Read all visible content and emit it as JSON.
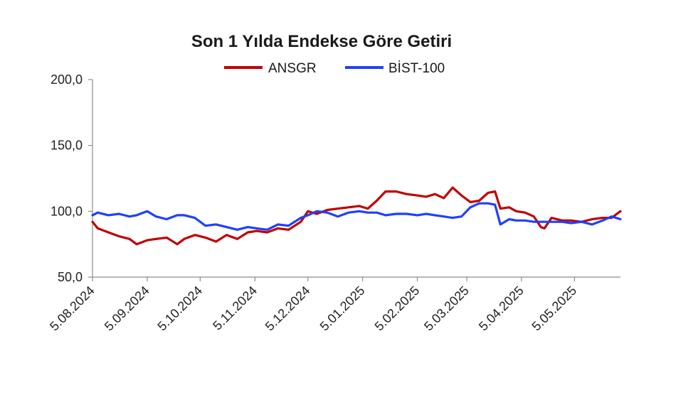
{
  "chart_data": {
    "type": "line",
    "title": "Son 1 Yılda Endekse Göre Getiri",
    "xlabel": "",
    "ylabel": "",
    "ylim": [
      50,
      200
    ],
    "yticks": [
      "50,0",
      "100,0",
      "150,0",
      "200,0"
    ],
    "yticks_values": [
      50,
      100,
      150,
      200
    ],
    "xticks": [
      "5.08.2024",
      "5.09.2024",
      "5.10.2024",
      "5.11.2024",
      "5.12.2024",
      "5.01.2025",
      "5.02.2025",
      "5.03.2025",
      "5.04.2025",
      "5.05.2025"
    ],
    "x_range": [
      "2024-08-05",
      "2025-05-31"
    ],
    "grid": false,
    "legend_position": "top",
    "series": [
      {
        "name": "ANSGR",
        "color": "#C00000",
        "points": [
          [
            "2024-08-05",
            92
          ],
          [
            "2024-08-08",
            87
          ],
          [
            "2024-08-14",
            84
          ],
          [
            "2024-08-20",
            81
          ],
          [
            "2024-08-26",
            79
          ],
          [
            "2024-08-30",
            75
          ],
          [
            "2024-09-05",
            78
          ],
          [
            "2024-09-10",
            79
          ],
          [
            "2024-09-16",
            80
          ],
          [
            "2024-09-22",
            75
          ],
          [
            "2024-09-26",
            79
          ],
          [
            "2024-10-02",
            82
          ],
          [
            "2024-10-08",
            80
          ],
          [
            "2024-10-14",
            77
          ],
          [
            "2024-10-20",
            82
          ],
          [
            "2024-10-26",
            79
          ],
          [
            "2024-11-01",
            84
          ],
          [
            "2024-11-06",
            85
          ],
          [
            "2024-11-12",
            84
          ],
          [
            "2024-11-18",
            87
          ],
          [
            "2024-11-24",
            86
          ],
          [
            "2024-12-01",
            92
          ],
          [
            "2024-12-05",
            100
          ],
          [
            "2024-12-10",
            98
          ],
          [
            "2024-12-16",
            101
          ],
          [
            "2024-12-22",
            102
          ],
          [
            "2024-12-28",
            103
          ],
          [
            "2025-01-03",
            104
          ],
          [
            "2025-01-08",
            102
          ],
          [
            "2025-01-13",
            108
          ],
          [
            "2025-01-18",
            115
          ],
          [
            "2025-01-24",
            115
          ],
          [
            "2025-01-30",
            113
          ],
          [
            "2025-02-05",
            112
          ],
          [
            "2025-02-10",
            111
          ],
          [
            "2025-02-15",
            113
          ],
          [
            "2025-02-20",
            110
          ],
          [
            "2025-02-25",
            118
          ],
          [
            "2025-03-02",
            112
          ],
          [
            "2025-03-07",
            107
          ],
          [
            "2025-03-12",
            108
          ],
          [
            "2025-03-17",
            114
          ],
          [
            "2025-03-21",
            115
          ],
          [
            "2025-03-24",
            102
          ],
          [
            "2025-03-29",
            103
          ],
          [
            "2025-04-02",
            100
          ],
          [
            "2025-04-07",
            99
          ],
          [
            "2025-04-12",
            96
          ],
          [
            "2025-04-16",
            88
          ],
          [
            "2025-04-18",
            87
          ],
          [
            "2025-04-22",
            95
          ],
          [
            "2025-04-28",
            93
          ],
          [
            "2025-05-03",
            93
          ],
          [
            "2025-05-09",
            92
          ],
          [
            "2025-05-15",
            94
          ],
          [
            "2025-05-21",
            95
          ],
          [
            "2025-05-26",
            95
          ],
          [
            "2025-05-31",
            100
          ]
        ]
      },
      {
        "name": "BİST-100",
        "color": "#1F3FFF",
        "points": [
          [
            "2024-08-05",
            97
          ],
          [
            "2024-08-08",
            99
          ],
          [
            "2024-08-14",
            97
          ],
          [
            "2024-08-20",
            98
          ],
          [
            "2024-08-26",
            96
          ],
          [
            "2024-08-30",
            97
          ],
          [
            "2024-09-05",
            100
          ],
          [
            "2024-09-10",
            96
          ],
          [
            "2024-09-16",
            94
          ],
          [
            "2024-09-22",
            97
          ],
          [
            "2024-09-26",
            97
          ],
          [
            "2024-10-02",
            95
          ],
          [
            "2024-10-08",
            89
          ],
          [
            "2024-10-14",
            90
          ],
          [
            "2024-10-20",
            88
          ],
          [
            "2024-10-26",
            86
          ],
          [
            "2024-11-01",
            88
          ],
          [
            "2024-11-06",
            87
          ],
          [
            "2024-11-12",
            86
          ],
          [
            "2024-11-18",
            90
          ],
          [
            "2024-11-24",
            89
          ],
          [
            "2024-12-01",
            95
          ],
          [
            "2024-12-05",
            97
          ],
          [
            "2024-12-10",
            100
          ],
          [
            "2024-12-16",
            99
          ],
          [
            "2024-12-22",
            96
          ],
          [
            "2024-12-28",
            99
          ],
          [
            "2025-01-03",
            100
          ],
          [
            "2025-01-08",
            99
          ],
          [
            "2025-01-13",
            99
          ],
          [
            "2025-01-18",
            97
          ],
          [
            "2025-01-24",
            98
          ],
          [
            "2025-01-30",
            98
          ],
          [
            "2025-02-05",
            97
          ],
          [
            "2025-02-10",
            98
          ],
          [
            "2025-02-15",
            97
          ],
          [
            "2025-02-20",
            96
          ],
          [
            "2025-02-25",
            95
          ],
          [
            "2025-03-02",
            96
          ],
          [
            "2025-03-07",
            103
          ],
          [
            "2025-03-12",
            106
          ],
          [
            "2025-03-17",
            106
          ],
          [
            "2025-03-21",
            105
          ],
          [
            "2025-03-24",
            90
          ],
          [
            "2025-03-29",
            94
          ],
          [
            "2025-04-02",
            93
          ],
          [
            "2025-04-07",
            93
          ],
          [
            "2025-04-12",
            92
          ],
          [
            "2025-04-16",
            92
          ],
          [
            "2025-04-18",
            92
          ],
          [
            "2025-04-22",
            92
          ],
          [
            "2025-04-28",
            92
          ],
          [
            "2025-05-03",
            91
          ],
          [
            "2025-05-09",
            92
          ],
          [
            "2025-05-15",
            90
          ],
          [
            "2025-05-21",
            93
          ],
          [
            "2025-05-26",
            96
          ],
          [
            "2025-05-31",
            94
          ]
        ]
      }
    ]
  }
}
